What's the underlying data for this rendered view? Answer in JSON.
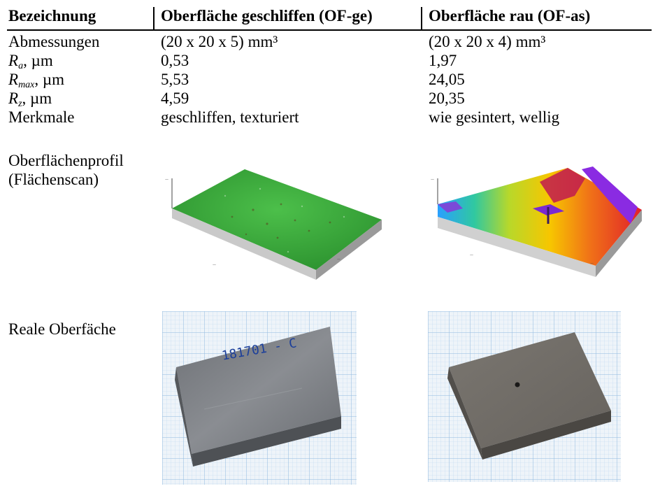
{
  "table": {
    "headers": [
      "Bezeichnung",
      "Oberfläche geschliffen (OF-ge)",
      "Oberfläche rau (OF-as)"
    ],
    "rows": [
      {
        "label": "Abmessungen",
        "ge": "(20 x 20 x 5) mm³",
        "as": "(20 x 20 x 4) mm³"
      },
      {
        "label_sym": "R",
        "label_sub": "a",
        "label_unit": ", µm",
        "ge": "0,53",
        "as": "1,97"
      },
      {
        "label_sym": "R",
        "label_sub": "max",
        "label_unit": ", µm",
        "ge": "5,53",
        "as": "24,05"
      },
      {
        "label_sym": "R",
        "label_sub": "z",
        "label_unit": ", µm",
        "ge": "4,59",
        "as": "20,35"
      },
      {
        "label": "Merkmale",
        "ge": "geschliffen, texturiert",
        "as": "wie gesintert, wellig"
      }
    ],
    "profile_label_1": "Oberflächenprofil",
    "profile_label_2": "(Flächenscan)",
    "real_label": "Reale Oberfäche",
    "photo_ge_marking": "181701 - C"
  },
  "colors": {
    "scan_ge": "#3aa53a",
    "scan_as_low": "#f5c400",
    "scan_as_high": "#e02020",
    "scan_as_peak": "#8a2be2",
    "block": "#7d7f84"
  }
}
